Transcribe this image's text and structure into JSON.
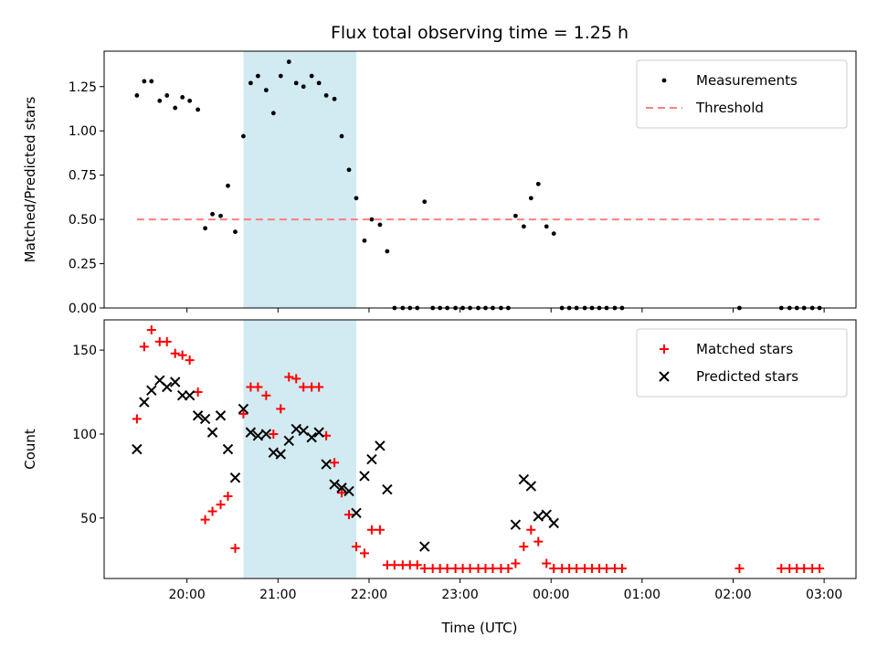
{
  "chart_data": {
    "type": "scatter",
    "title": "Flux total observing time = 1.25 h",
    "xlabel": "Time (UTC)",
    "x_tick_labels": [
      "20:00",
      "21:00",
      "22:00",
      "23:00",
      "00:00",
      "01:00",
      "02:00",
      "03:00"
    ],
    "x_tick_hours": [
      20,
      21,
      22,
      23,
      24,
      25,
      26,
      27
    ],
    "xlim_hours": [
      19.09,
      27.35
    ],
    "highlight_span_hours": [
      20.62,
      21.86
    ],
    "highlight_color": "#add8e6",
    "panels": [
      {
        "ylabel": "Matched/Predicted stars",
        "ylim": [
          0,
          1.45
        ],
        "y_ticks": [
          "0.00",
          "0.25",
          "0.50",
          "0.75",
          "1.00",
          "1.25"
        ],
        "y_tick_values": [
          0,
          0.25,
          0.5,
          0.75,
          1.0,
          1.25
        ],
        "legend_position": "upper-right",
        "series": [
          {
            "name": "Measurements",
            "marker": "dot",
            "color": "#000000",
            "x": [
              19.45,
              19.53,
              19.61,
              19.7,
              19.78,
              19.87,
              19.95,
              20.03,
              20.12,
              20.2,
              20.28,
              20.37,
              20.45,
              20.53,
              20.62,
              20.7,
              20.78,
              20.87,
              20.95,
              21.03,
              21.12,
              21.2,
              21.28,
              21.37,
              21.45,
              21.53,
              21.62,
              21.7,
              21.78,
              21.86,
              21.95,
              22.03,
              22.12,
              22.2,
              22.28,
              22.37,
              22.45,
              22.53,
              22.61,
              22.7,
              22.78,
              22.86,
              22.95,
              23.03,
              23.11,
              23.2,
              23.28,
              23.36,
              23.45,
              23.53,
              23.61,
              23.7,
              23.78,
              23.86,
              23.95,
              24.03,
              24.12,
              24.2,
              24.28,
              24.37,
              24.45,
              24.53,
              24.61,
              24.7,
              24.78,
              26.07,
              26.53,
              26.62,
              26.7,
              26.78,
              26.87,
              26.95
            ],
            "y": [
              1.2,
              1.28,
              1.28,
              1.17,
              1.2,
              1.13,
              1.19,
              1.17,
              1.12,
              0.45,
              0.53,
              0.52,
              0.69,
              0.43,
              0.97,
              1.27,
              1.31,
              1.23,
              1.1,
              1.31,
              1.39,
              1.27,
              1.25,
              1.31,
              1.27,
              1.2,
              1.18,
              0.97,
              0.78,
              0.62,
              0.38,
              0.5,
              0.47,
              0.32,
              0,
              0,
              0,
              0,
              0.6,
              0,
              0,
              0,
              0,
              0,
              0,
              0,
              0,
              0,
              0,
              0,
              0.52,
              0.46,
              0.62,
              0.7,
              0.46,
              0.42,
              0,
              0,
              0,
              0,
              0,
              0,
              0,
              0,
              0,
              0,
              0,
              0,
              0,
              0,
              0,
              0
            ]
          },
          {
            "name": "Threshold",
            "line": "dashed",
            "color": "#ff7f7f",
            "x": [
              19.45,
              26.95
            ],
            "y": [
              0.5,
              0.5
            ]
          }
        ]
      },
      {
        "ylabel": "Count",
        "ylim": [
          14,
          168
        ],
        "y_ticks": [
          "50",
          "100",
          "150"
        ],
        "y_tick_values": [
          50,
          100,
          150
        ],
        "legend_position": "upper-right",
        "series": [
          {
            "name": "Matched stars",
            "marker": "plus",
            "color": "#ff0000",
            "x": [
              19.45,
              19.53,
              19.61,
              19.7,
              19.78,
              19.87,
              19.95,
              20.03,
              20.12,
              20.2,
              20.28,
              20.37,
              20.45,
              20.53,
              20.62,
              20.7,
              20.78,
              20.87,
              20.95,
              21.03,
              21.12,
              21.2,
              21.28,
              21.37,
              21.45,
              21.53,
              21.62,
              21.7,
              21.78,
              21.86,
              21.95,
              22.03,
              22.12,
              22.2,
              22.28,
              22.37,
              22.45,
              22.53,
              22.61,
              22.7,
              22.78,
              22.86,
              22.95,
              23.03,
              23.11,
              23.2,
              23.28,
              23.36,
              23.45,
              23.53,
              23.61,
              23.7,
              23.78,
              23.86,
              23.95,
              24.03,
              24.12,
              24.2,
              24.28,
              24.37,
              24.45,
              24.53,
              24.61,
              24.7,
              24.78,
              26.07,
              26.53,
              26.62,
              26.7,
              26.78,
              26.87,
              26.95
            ],
            "y": [
              109,
              152,
              162,
              155,
              155,
              148,
              147,
              144,
              125,
              49,
              54,
              58,
              63,
              32,
              112,
              128,
              128,
              123,
              100,
              115,
              134,
              133,
              128,
              128,
              128,
              99,
              83,
              65,
              52,
              33,
              29,
              43,
              43,
              22,
              22,
              22,
              22,
              22,
              20,
              20,
              20,
              20,
              20,
              20,
              20,
              20,
              20,
              20,
              20,
              20,
              23,
              33,
              43,
              36,
              23,
              20,
              20,
              20,
              20,
              20,
              20,
              20,
              20,
              20,
              20,
              20,
              20,
              20,
              20,
              20,
              20,
              20
            ]
          },
          {
            "name": "Predicted stars",
            "marker": "x",
            "color": "#000000",
            "x": [
              19.45,
              19.53,
              19.61,
              19.7,
              19.78,
              19.87,
              19.95,
              20.03,
              20.12,
              20.2,
              20.28,
              20.37,
              20.45,
              20.53,
              20.62,
              20.7,
              20.78,
              20.87,
              20.95,
              21.03,
              21.12,
              21.2,
              21.28,
              21.37,
              21.45,
              21.53,
              21.62,
              21.7,
              21.78,
              21.86,
              21.95,
              22.03,
              22.12,
              22.2,
              22.61,
              23.61,
              23.7,
              23.78,
              23.86,
              23.95,
              24.03
            ],
            "y": [
              91,
              119,
              126,
              132,
              128,
              131,
              123,
              123,
              111,
              109,
              101,
              111,
              91,
              74,
              115,
              101,
              99,
              100,
              89,
              88,
              96,
              103,
              102,
              98,
              101,
              82,
              70,
              68,
              66,
              53,
              75,
              85,
              93,
              67,
              33,
              46,
              73,
              69,
              51,
              52,
              47
            ]
          }
        ]
      }
    ]
  }
}
